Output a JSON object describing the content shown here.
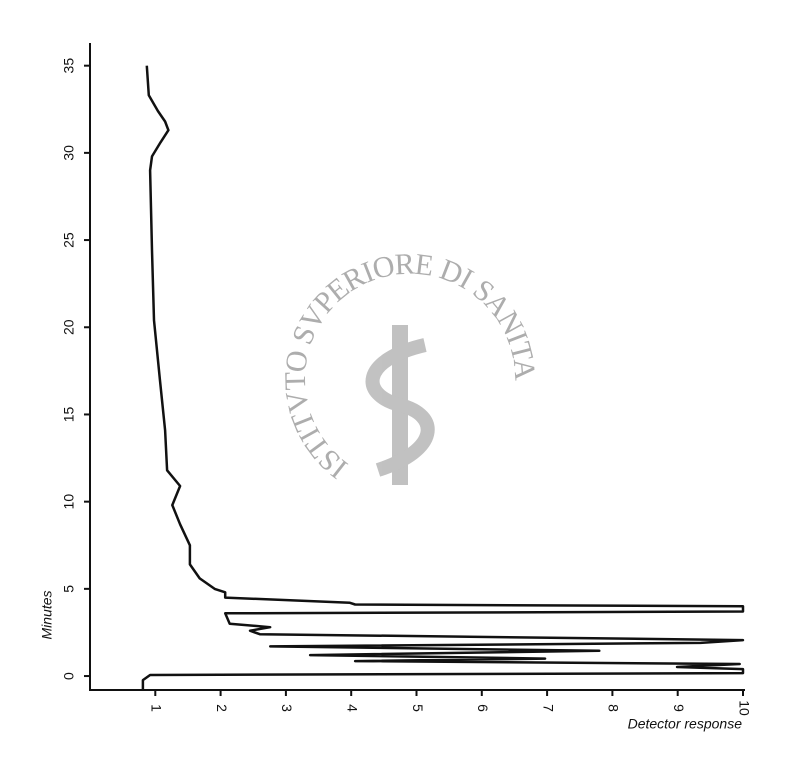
{
  "chart_data": {
    "type": "line",
    "watermark": "ISTITVTO SVPERIORE DI SANITA",
    "xlabel": "Detector response",
    "ylabel": "Minutes",
    "xlim": [
      0,
      10
    ],
    "ylim": [
      -0.8,
      36.3
    ],
    "xticks": [
      1,
      2,
      3,
      4,
      5,
      6,
      7,
      8,
      9,
      10
    ],
    "yticks": [
      0,
      5,
      10,
      15,
      20,
      25,
      30,
      35
    ],
    "grid": false,
    "series": [
      {
        "color": "#111111",
        "x": [
          0.87,
          0.9,
          1.04,
          1.15,
          1.2,
          1.08,
          0.95,
          0.92,
          0.95,
          0.98,
          1.07,
          1.15,
          1.18,
          1.38,
          1.26,
          1.38,
          1.53,
          1.53,
          1.68,
          1.91,
          2.07,
          2.07,
          3.98,
          4.06,
          10,
          10,
          2.07,
          2.14,
          2.76,
          2.45,
          2.6,
          10,
          9.35,
          2.76,
          7.8,
          3.37,
          6.97,
          4.06,
          9.95,
          8.99,
          10,
          10,
          0.92,
          0.81,
          0.81
        ],
        "values": [
          35,
          33.3,
          32.4,
          31.8,
          31.3,
          30.6,
          29.8,
          29.0,
          24.4,
          20.4,
          17.0,
          14.1,
          11.8,
          10.9,
          9.8,
          8.7,
          7.5,
          6.4,
          5.6,
          5.0,
          4.8,
          4.5,
          4.2,
          4.1,
          4.0,
          3.7,
          3.6,
          3.0,
          2.8,
          2.6,
          2.4,
          2.06,
          1.9,
          1.7,
          1.45,
          1.2,
          1.0,
          0.86,
          0.69,
          0.52,
          0.4,
          0.17,
          0.06,
          -0.23,
          -0.8
        ]
      }
    ]
  }
}
